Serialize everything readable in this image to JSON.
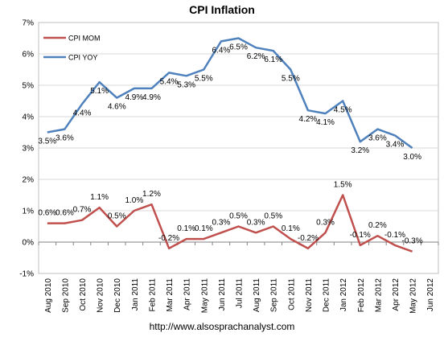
{
  "chart_data": {
    "type": "line",
    "title": "CPI Inflation",
    "source": "http://www.alsosprachanalyst.com",
    "ylim": [
      -1,
      7
    ],
    "yticks": [
      -1,
      0,
      1,
      2,
      3,
      4,
      5,
      6,
      7
    ],
    "ytick_suffix": "%",
    "grid": true,
    "legend": "top-left",
    "categories": [
      "Aug 2010",
      "Sep 2010",
      "Oct 2010",
      "Nov 2010",
      "Dec 2010",
      "Jan 2011",
      "Feb 2011",
      "Mar 2011",
      "Apr 2011",
      "May 2011",
      "Jun 2011",
      "Jul 2011",
      "Aug 2011",
      "Sep 2011",
      "Oct 2011",
      "Nov 2011",
      "Dec 2011",
      "Jan 2012",
      "Feb 2012",
      "Mar 2012",
      "Apr 2012",
      "May 2012",
      "Jun 2012"
    ],
    "series": [
      {
        "name": "CPI MOM",
        "color": "#c0504d",
        "values": [
          0.6,
          0.6,
          0.7,
          1.1,
          0.5,
          1.0,
          1.2,
          -0.2,
          0.1,
          0.1,
          0.3,
          0.5,
          0.3,
          0.5,
          0.1,
          -0.2,
          0.3,
          1.5,
          -0.1,
          0.2,
          -0.1,
          -0.3,
          null
        ],
        "labels": [
          "0.6%",
          "0.6%",
          "0.7%",
          "1.1%",
          "0.5%",
          "1.0%",
          "1.2%",
          "-0.2%",
          "0.1%",
          "0.1%",
          "0.3%",
          "0.5%",
          "0.3%",
          "0.5%",
          "0.1%",
          "-0.2%",
          "0.3%",
          "1.5%",
          "-0.1%",
          "0.2%",
          "-0.1%",
          "-0.3%",
          null
        ]
      },
      {
        "name": "CPI YOY",
        "color": "#4f81bd",
        "values": [
          3.5,
          3.6,
          4.4,
          5.1,
          4.6,
          4.9,
          4.9,
          5.4,
          5.3,
          5.5,
          6.4,
          6.5,
          6.2,
          6.1,
          5.5,
          4.2,
          4.1,
          4.5,
          3.2,
          3.6,
          3.4,
          3.0,
          null
        ],
        "labels": [
          "3.5%",
          "3.6%",
          "4.4%",
          "5.1%",
          "4.6%",
          "4.9%",
          "4.9%",
          "5.4%",
          "5.3%",
          "5.5%",
          "6.4%",
          "6.5%",
          "6.2%",
          "6.1%",
          "5.5%",
          "4.2%",
          "4.1%",
          "4.5%",
          "3.2%",
          "3.6%",
          "3.4%",
          "3.0%",
          null
        ]
      }
    ]
  }
}
